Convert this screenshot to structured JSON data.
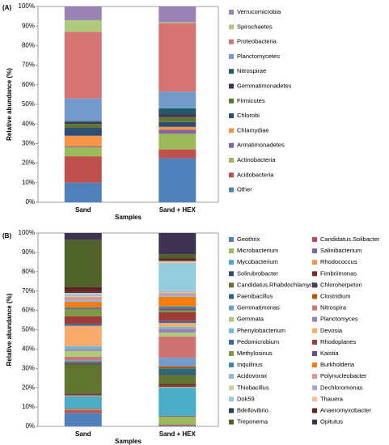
{
  "chart_data": [
    {
      "type": "bar",
      "stacked": true,
      "panel_label": "(A)",
      "y_label": "Relative abundance (%)",
      "x_label": "Samples",
      "categories": [
        "Sand",
        "Sand + HEX"
      ],
      "ylim": [
        0,
        100
      ],
      "yticks": [
        {
          "value": 0,
          "label": "0%"
        },
        {
          "value": 10,
          "label": "10%"
        },
        {
          "value": 20,
          "label": "20%"
        },
        {
          "value": 30,
          "label": "30%"
        },
        {
          "value": 40,
          "label": "40%"
        },
        {
          "value": 50,
          "label": "50%"
        },
        {
          "value": 60,
          "label": "60%"
        },
        {
          "value": 70,
          "label": "70%"
        },
        {
          "value": 80,
          "label": "80%"
        },
        {
          "value": 90,
          "label": "90%"
        },
        {
          "value": 100,
          "label": "100%"
        }
      ],
      "grid": false,
      "legend_columns": 1,
      "legend_order": "reversed",
      "series": [
        {
          "name": "Other",
          "color": "#4f81bd",
          "values": [
            10,
            22.5
          ]
        },
        {
          "name": "Acidobacteria",
          "color": "#c0504d",
          "values": [
            13.5,
            4.5
          ]
        },
        {
          "name": "Actinobacteria",
          "color": "#9bbb59",
          "values": [
            4.5,
            8
          ]
        },
        {
          "name": "Armatimonadetes",
          "color": "#8064a2",
          "values": [
            0.5,
            2
          ]
        },
        {
          "name": "Chlamydiae",
          "color": "#f79646",
          "values": [
            5.5,
            1.5
          ]
        },
        {
          "name": "Chlorobi",
          "color": "#2c4d75",
          "values": [
            4,
            2.5
          ]
        },
        {
          "name": "Firmicutes",
          "color": "#5f7530",
          "values": [
            2,
            2.5
          ]
        },
        {
          "name": "Gemmatimonadetes",
          "color": "#403152",
          "values": [
            1,
            1.5
          ]
        },
        {
          "name": "Nitrospirae",
          "color": "#215968",
          "values": [
            0.5,
            3
          ]
        },
        {
          "name": "Planctomycetes",
          "color": "#729aca",
          "values": [
            11.5,
            8.5
          ]
        },
        {
          "name": "Proteobacteria",
          "color": "#d57472",
          "values": [
            34,
            35
          ]
        },
        {
          "name": "Spirochaetes",
          "color": "#afc97a",
          "values": [
            6,
            0.5
          ]
        },
        {
          "name": "Verrucomicrobia",
          "color": "#9983b5",
          "values": [
            7,
            8
          ]
        }
      ]
    },
    {
      "type": "bar",
      "stacked": true,
      "panel_label": "(B)",
      "y_label": "Relative abundance (%)",
      "x_label": "Samples",
      "categories": [
        "Sand",
        "Sand + HEX"
      ],
      "ylim": [
        0,
        100
      ],
      "yticks": [
        {
          "value": 0,
          "label": "0%"
        },
        {
          "value": 10,
          "label": "10%"
        },
        {
          "value": 20,
          "label": "20%"
        },
        {
          "value": 30,
          "label": "30%"
        },
        {
          "value": 40,
          "label": "40%"
        },
        {
          "value": 50,
          "label": "50%"
        },
        {
          "value": 60,
          "label": "60%"
        },
        {
          "value": 70,
          "label": "70%"
        },
        {
          "value": 80,
          "label": "80%"
        },
        {
          "value": 90,
          "label": "90%"
        },
        {
          "value": 100,
          "label": "100%"
        }
      ],
      "grid": false,
      "legend_columns": 2,
      "legend_order": "normal",
      "series": [
        {
          "name": "Geothrix",
          "color": "#4f81bd",
          "values": [
            7,
            0.5
          ]
        },
        {
          "name": "Candidatus.Solibacter",
          "color": "#c0504d",
          "values": [
            1.5,
            0.5
          ]
        },
        {
          "name": "Microbacterium",
          "color": "#9bbb59",
          "values": [
            0.5,
            4
          ]
        },
        {
          "name": "Salinibacterium",
          "color": "#8064a2",
          "values": [
            0.5,
            0.5
          ]
        },
        {
          "name": "Mycobacterium",
          "color": "#4bacc6",
          "values": [
            6,
            14.5
          ]
        },
        {
          "name": "Rhodococcus",
          "color": "#f79646",
          "values": [
            0.5,
            0.5
          ]
        },
        {
          "name": "Solirubrobacter",
          "color": "#2c4d75",
          "values": [
            0.5,
            0.5
          ]
        },
        {
          "name": "Fimbriimonas",
          "color": "#772c2a",
          "values": [
            0.5,
            1
          ]
        },
        {
          "name": "Candidatus.Rhabdochlamydia",
          "color": "#5f7530",
          "values": [
            15,
            4.5
          ]
        },
        {
          "name": "Chloroherpeton",
          "color": "#4d3b62",
          "values": [
            0.5,
            0.5
          ]
        },
        {
          "name": "Paenibacillus",
          "color": "#276a7c",
          "values": [
            0.5,
            3
          ]
        },
        {
          "name": "Clostridium",
          "color": "#b65708",
          "values": [
            0.5,
            1
          ]
        },
        {
          "name": "Gemmatimonas",
          "color": "#729aca",
          "values": [
            1,
            4.5
          ]
        },
        {
          "name": "Nitrospira",
          "color": "#cd7371",
          "values": [
            1.5,
            11
          ]
        },
        {
          "name": "Gemmata",
          "color": "#afc97a",
          "values": [
            3,
            2
          ]
        },
        {
          "name": "Planctomyces",
          "color": "#9983b5",
          "values": [
            1,
            2
          ]
        },
        {
          "name": "Phenylobacterium",
          "color": "#6fbdd1",
          "values": [
            1.5,
            1
          ]
        },
        {
          "name": "Devosia",
          "color": "#f9ab6b",
          "values": [
            10.5,
            2
          ]
        },
        {
          "name": "Pedomicrobium",
          "color": "#3a679c",
          "values": [
            1,
            1
          ]
        },
        {
          "name": "Rhodoplanes",
          "color": "#9f3b38",
          "values": [
            4,
            4.5
          ]
        },
        {
          "name": "Methylosinus",
          "color": "#7f9a41",
          "values": [
            3.5,
            1
          ]
        },
        {
          "name": "Kaistia",
          "color": "#674f84",
          "values": [
            0.5,
            1
          ]
        },
        {
          "name": "Inquilinus",
          "color": "#358ea6",
          "values": [
            0.5,
            1
          ]
        },
        {
          "name": "Burkholderia",
          "color": "#f37d0e",
          "values": [
            3,
            5
          ]
        },
        {
          "name": "Acidovorax",
          "color": "#95b3d7",
          "values": [
            1,
            1
          ]
        },
        {
          "name": "Polynucleobacter",
          "color": "#d99694",
          "values": [
            1.5,
            1
          ]
        },
        {
          "name": "Thiobacillus",
          "color": "#c3d69b",
          "values": [
            0.5,
            0.5
          ]
        },
        {
          "name": "Dechloromonas",
          "color": "#b3a2c7",
          "values": [
            0.5,
            0.5
          ]
        },
        {
          "name": "Dok59",
          "color": "#93cddd",
          "values": [
            0.5,
            14.5
          ]
        },
        {
          "name": "Thauera",
          "color": "#fac090",
          "values": [
            0.5,
            1
          ]
        },
        {
          "name": "Bdellovibrio",
          "color": "#254061",
          "values": [
            0.5,
            0.5
          ]
        },
        {
          "name": "Anaeromyxobacter",
          "color": "#632523",
          "values": [
            2.5,
            1
          ]
        },
        {
          "name": "Treponema",
          "color": "#4f6228",
          "values": [
            24.5,
            2
          ]
        },
        {
          "name": "Opitutus",
          "color": "#3f3151",
          "values": [
            3.5,
            11
          ]
        }
      ]
    }
  ]
}
